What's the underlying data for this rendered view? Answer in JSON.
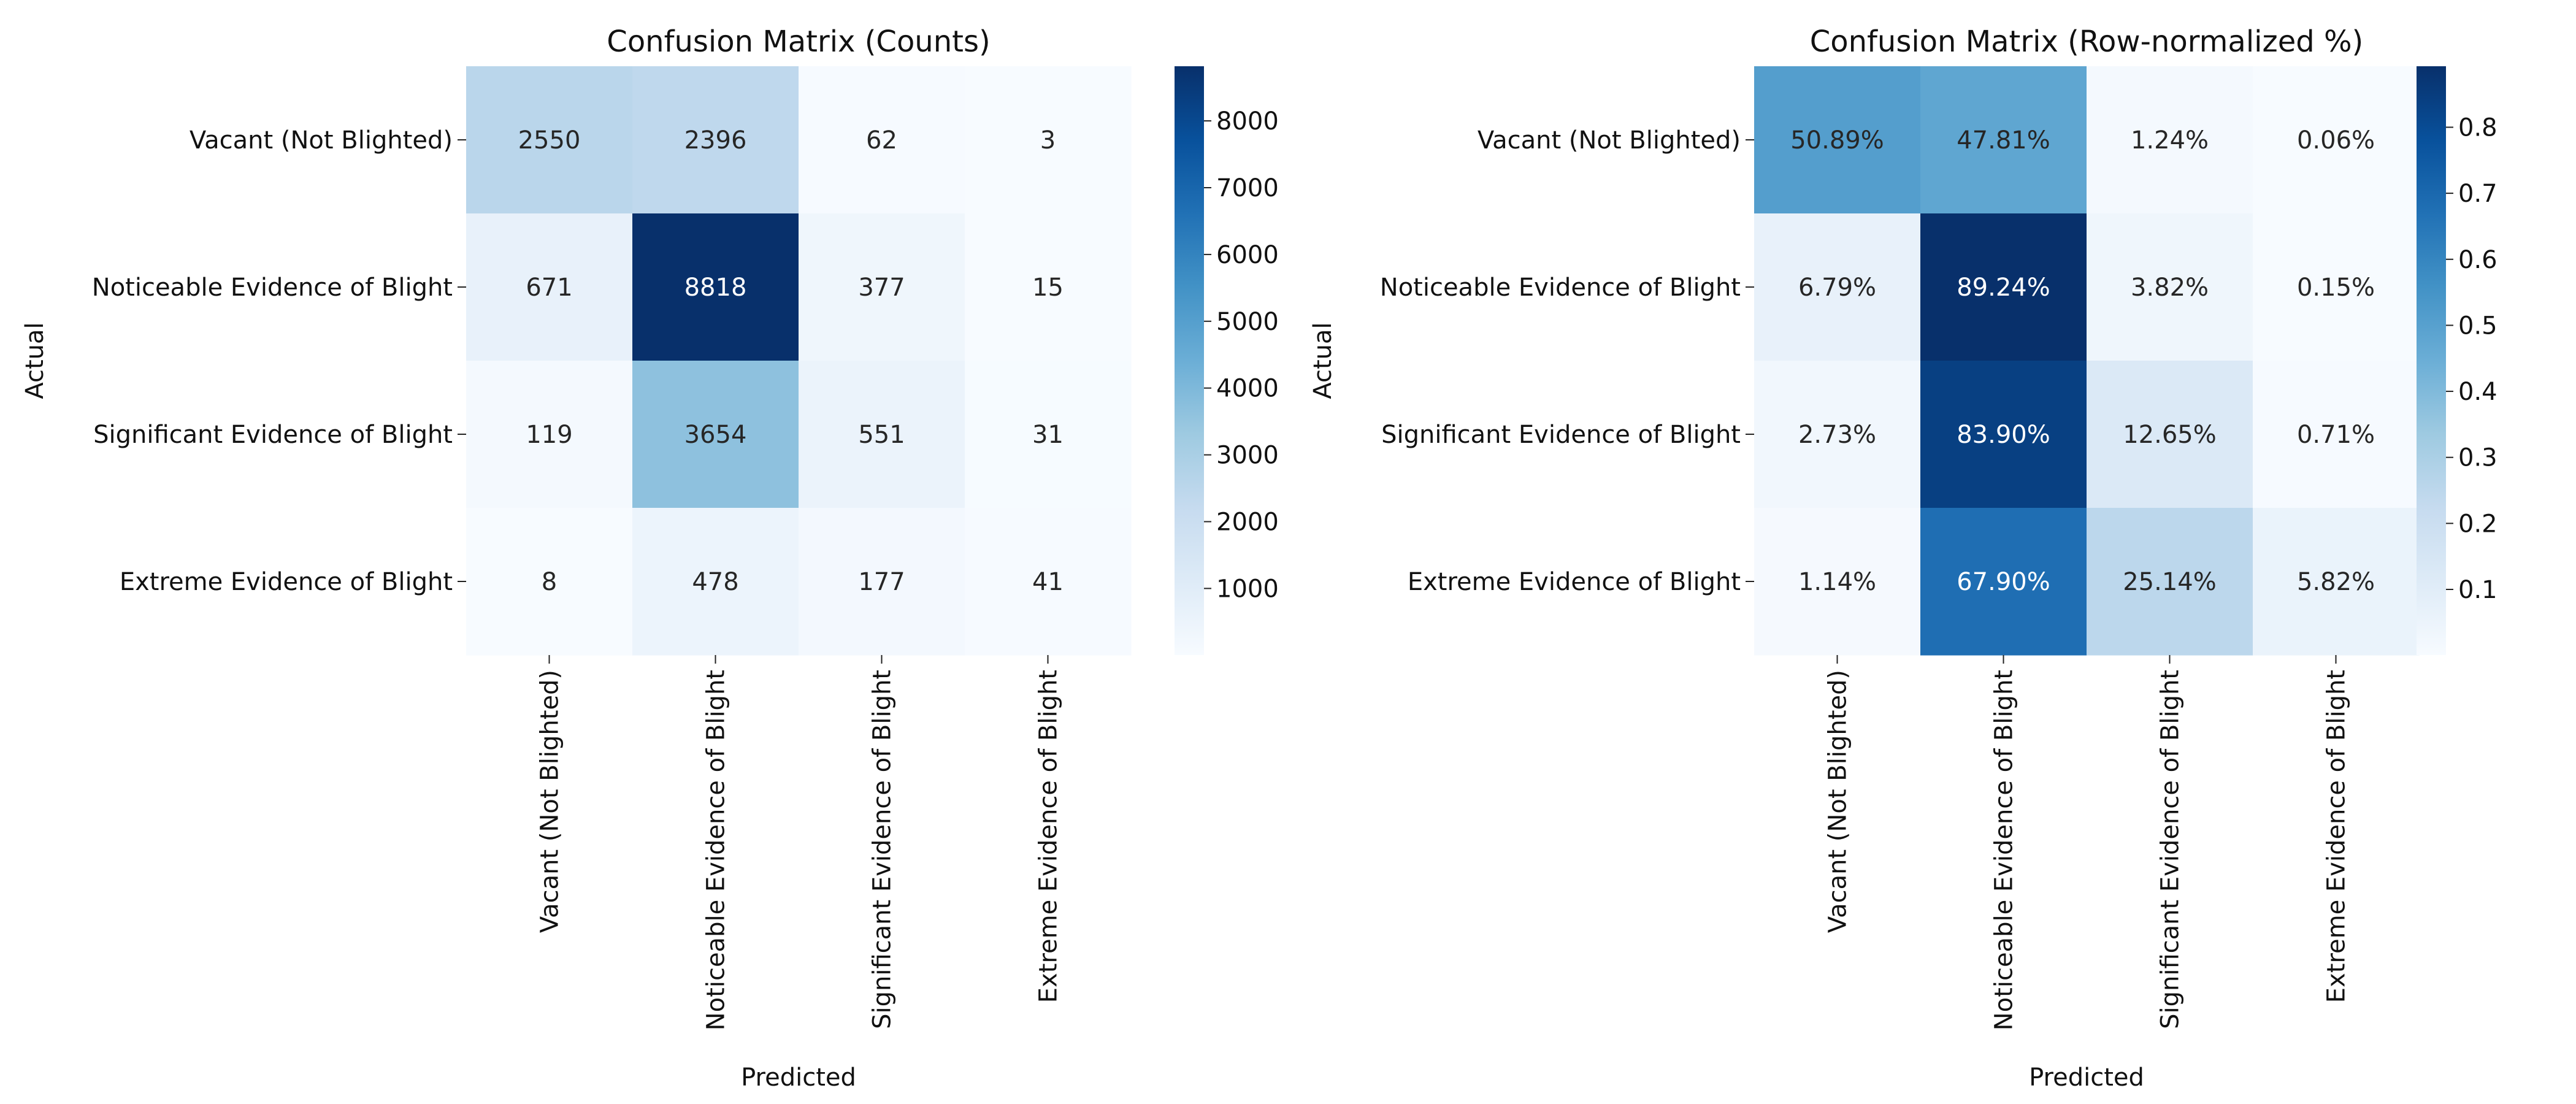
{
  "chart_data": [
    {
      "type": "heatmap",
      "title": "Confusion Matrix (Counts)",
      "xlabel": "Predicted",
      "ylabel": "Actual",
      "row_labels": [
        "Vacant (Not Blighted)",
        "Noticeable Evidence of Blight",
        "Significant Evidence of Blight",
        "Extreme Evidence of Blight"
      ],
      "col_labels": [
        "Vacant (Not Blighted)",
        "Noticeable Evidence of Blight",
        "Significant Evidence of Blight",
        "Extreme Evidence of Blight"
      ],
      "values": [
        [
          2550,
          2396,
          62,
          3
        ],
        [
          671,
          8818,
          377,
          15
        ],
        [
          119,
          3654,
          551,
          31
        ],
        [
          8,
          478,
          177,
          41
        ]
      ],
      "cell_labels": [
        [
          "2550",
          "2396",
          "62",
          "3"
        ],
        [
          "671",
          "8818",
          "377",
          "15"
        ],
        [
          "119",
          "3654",
          "551",
          "31"
        ],
        [
          "8",
          "478",
          "177",
          "41"
        ]
      ],
      "colormap": "Blues",
      "colorbar": {
        "range": [
          3,
          8818
        ],
        "ticks": [
          1000,
          2000,
          3000,
          4000,
          5000,
          6000,
          7000,
          8000
        ],
        "tick_labels": [
          "1000",
          "2000",
          "3000",
          "4000",
          "5000",
          "6000",
          "7000",
          "8000"
        ]
      }
    },
    {
      "type": "heatmap",
      "title": "Confusion Matrix (Row-normalized %)",
      "xlabel": "Predicted",
      "ylabel": "Actual",
      "row_labels": [
        "Vacant (Not Blighted)",
        "Noticeable Evidence of Blight",
        "Significant Evidence of Blight",
        "Extreme Evidence of Blight"
      ],
      "col_labels": [
        "Vacant (Not Blighted)",
        "Noticeable Evidence of Blight",
        "Significant Evidence of Blight",
        "Extreme Evidence of Blight"
      ],
      "values": [
        [
          0.5089,
          0.4781,
          0.0124,
          0.0006
        ],
        [
          0.0679,
          0.8924,
          0.0382,
          0.0015
        ],
        [
          0.0273,
          0.839,
          0.1265,
          0.0071
        ],
        [
          0.0114,
          0.679,
          0.2514,
          0.0582
        ]
      ],
      "cell_labels": [
        [
          "50.89%",
          "47.81%",
          "1.24%",
          "0.06%"
        ],
        [
          "6.79%",
          "89.24%",
          "3.82%",
          "0.15%"
        ],
        [
          "2.73%",
          "83.90%",
          "12.65%",
          "0.71%"
        ],
        [
          "1.14%",
          "67.90%",
          "25.14%",
          "5.82%"
        ]
      ],
      "colormap": "Blues",
      "colorbar": {
        "range": [
          0.0006,
          0.8924
        ],
        "ticks": [
          0.1,
          0.2,
          0.3,
          0.4,
          0.5,
          0.6,
          0.7,
          0.8
        ],
        "tick_labels": [
          "0.1",
          "0.2",
          "0.3",
          "0.4",
          "0.5",
          "0.6",
          "0.7",
          "0.8"
        ]
      }
    }
  ]
}
